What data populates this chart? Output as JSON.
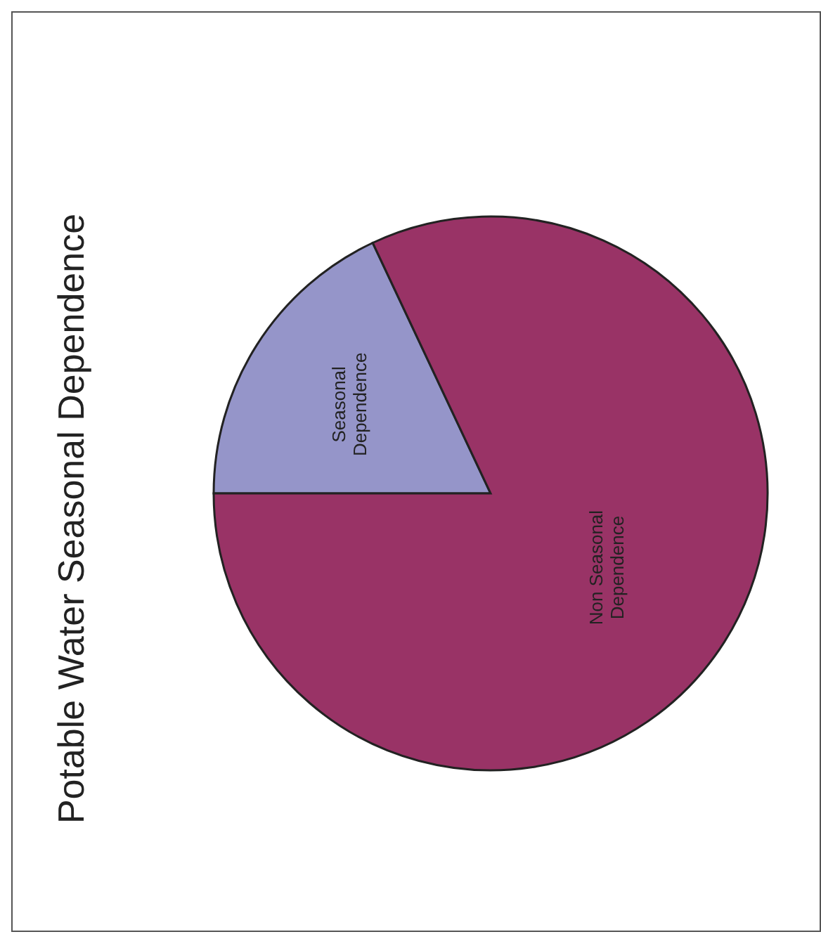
{
  "chart_data": {
    "type": "pie",
    "title": "Potable Water Seasonal Dependence",
    "categories": [
      "Seasonal Dependence",
      "Non Seasonal Dependence"
    ],
    "values": [
      18,
      82
    ],
    "colors": [
      "#9595c9",
      "#993366"
    ]
  }
}
